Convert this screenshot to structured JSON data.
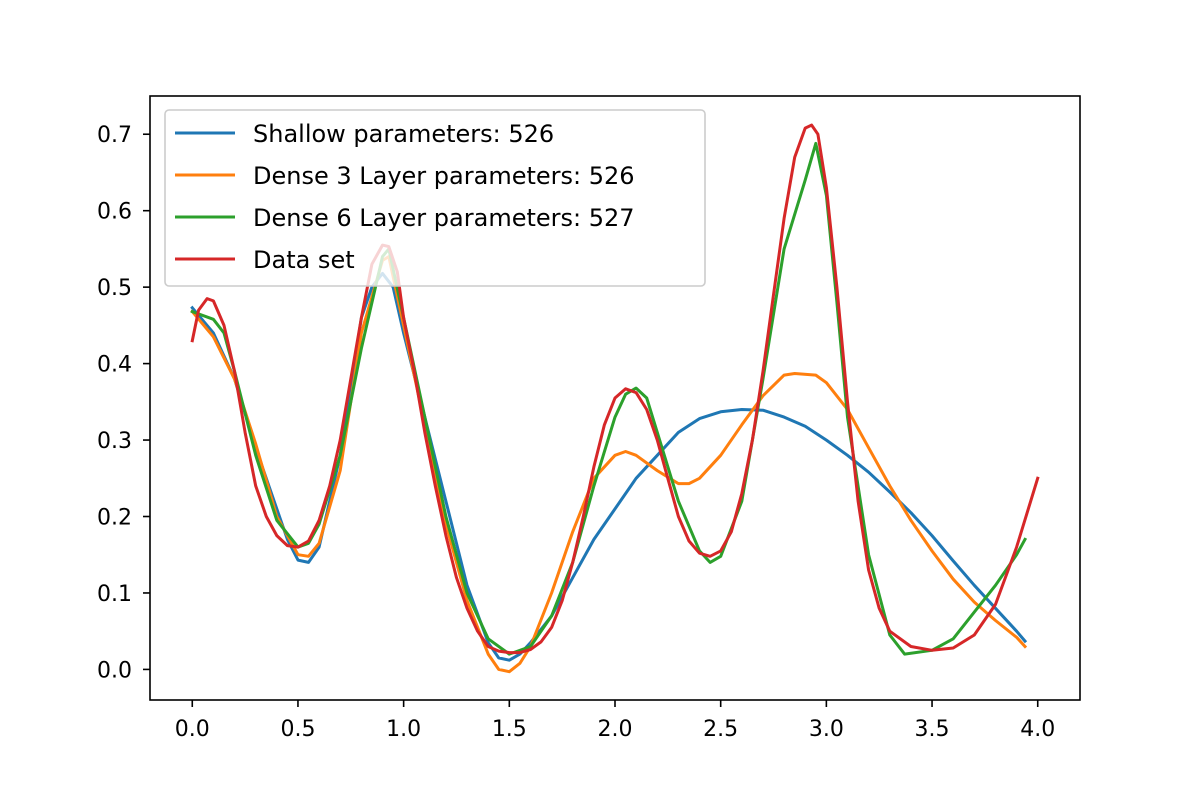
{
  "chart_data": {
    "type": "line",
    "title": "",
    "xlabel": "",
    "ylabel": "",
    "xlim": [
      -0.2,
      4.2
    ],
    "ylim": [
      -0.04,
      0.75
    ],
    "grid": false,
    "legend_position": "top-left",
    "x_ticks": [
      "0.0",
      "0.5",
      "1.0",
      "1.5",
      "2.0",
      "2.5",
      "3.0",
      "3.5",
      "4.0"
    ],
    "y_ticks": [
      "0.0",
      "0.1",
      "0.2",
      "0.3",
      "0.4",
      "0.5",
      "0.6",
      "0.7"
    ],
    "series": [
      {
        "name": "Shallow parameters: 526",
        "color": "#1f77b4",
        "points": [
          [
            0.0,
            0.473
          ],
          [
            0.1,
            0.44
          ],
          [
            0.2,
            0.38
          ],
          [
            0.3,
            0.29
          ],
          [
            0.4,
            0.21
          ],
          [
            0.45,
            0.17
          ],
          [
            0.5,
            0.143
          ],
          [
            0.55,
            0.14
          ],
          [
            0.6,
            0.16
          ],
          [
            0.7,
            0.28
          ],
          [
            0.8,
            0.46
          ],
          [
            0.85,
            0.5
          ],
          [
            0.9,
            0.518
          ],
          [
            0.95,
            0.5
          ],
          [
            1.0,
            0.44
          ],
          [
            1.1,
            0.33
          ],
          [
            1.2,
            0.22
          ],
          [
            1.3,
            0.11
          ],
          [
            1.4,
            0.035
          ],
          [
            1.45,
            0.015
          ],
          [
            1.5,
            0.012
          ],
          [
            1.55,
            0.02
          ],
          [
            1.6,
            0.035
          ],
          [
            1.7,
            0.07
          ],
          [
            1.8,
            0.12
          ],
          [
            1.9,
            0.17
          ],
          [
            2.0,
            0.21
          ],
          [
            2.1,
            0.25
          ],
          [
            2.2,
            0.28
          ],
          [
            2.3,
            0.31
          ],
          [
            2.4,
            0.328
          ],
          [
            2.5,
            0.337
          ],
          [
            2.6,
            0.34
          ],
          [
            2.7,
            0.339
          ],
          [
            2.8,
            0.33
          ],
          [
            2.9,
            0.318
          ],
          [
            3.0,
            0.3
          ],
          [
            3.1,
            0.28
          ],
          [
            3.2,
            0.258
          ],
          [
            3.3,
            0.232
          ],
          [
            3.4,
            0.205
          ],
          [
            3.5,
            0.175
          ],
          [
            3.6,
            0.142
          ],
          [
            3.7,
            0.11
          ],
          [
            3.8,
            0.08
          ],
          [
            3.9,
            0.05
          ],
          [
            3.94,
            0.037
          ]
        ]
      },
      {
        "name": "Dense 3 Layer parameters: 526",
        "color": "#ff7f0e",
        "points": [
          [
            0.0,
            0.468
          ],
          [
            0.1,
            0.435
          ],
          [
            0.2,
            0.38
          ],
          [
            0.3,
            0.295
          ],
          [
            0.4,
            0.2
          ],
          [
            0.5,
            0.15
          ],
          [
            0.55,
            0.148
          ],
          [
            0.6,
            0.165
          ],
          [
            0.7,
            0.26
          ],
          [
            0.8,
            0.44
          ],
          [
            0.9,
            0.535
          ],
          [
            0.93,
            0.54
          ],
          [
            1.0,
            0.45
          ],
          [
            1.1,
            0.32
          ],
          [
            1.2,
            0.19
          ],
          [
            1.3,
            0.09
          ],
          [
            1.4,
            0.02
          ],
          [
            1.45,
            0.0
          ],
          [
            1.5,
            -0.003
          ],
          [
            1.55,
            0.008
          ],
          [
            1.6,
            0.03
          ],
          [
            1.7,
            0.1
          ],
          [
            1.8,
            0.18
          ],
          [
            1.9,
            0.25
          ],
          [
            2.0,
            0.28
          ],
          [
            2.05,
            0.285
          ],
          [
            2.1,
            0.28
          ],
          [
            2.2,
            0.26
          ],
          [
            2.3,
            0.243
          ],
          [
            2.35,
            0.243
          ],
          [
            2.4,
            0.25
          ],
          [
            2.5,
            0.28
          ],
          [
            2.6,
            0.32
          ],
          [
            2.7,
            0.358
          ],
          [
            2.8,
            0.385
          ],
          [
            2.85,
            0.387
          ],
          [
            2.95,
            0.385
          ],
          [
            3.0,
            0.375
          ],
          [
            3.1,
            0.34
          ],
          [
            3.2,
            0.29
          ],
          [
            3.3,
            0.24
          ],
          [
            3.4,
            0.195
          ],
          [
            3.5,
            0.155
          ],
          [
            3.6,
            0.118
          ],
          [
            3.7,
            0.088
          ],
          [
            3.8,
            0.064
          ],
          [
            3.9,
            0.042
          ],
          [
            3.94,
            0.03
          ]
        ]
      },
      {
        "name": "Dense 6 Layer parameters: 527",
        "color": "#2ca02c",
        "points": [
          [
            0.0,
            0.468
          ],
          [
            0.1,
            0.458
          ],
          [
            0.15,
            0.44
          ],
          [
            0.2,
            0.39
          ],
          [
            0.3,
            0.28
          ],
          [
            0.4,
            0.195
          ],
          [
            0.5,
            0.16
          ],
          [
            0.55,
            0.165
          ],
          [
            0.6,
            0.19
          ],
          [
            0.7,
            0.28
          ],
          [
            0.8,
            0.42
          ],
          [
            0.9,
            0.54
          ],
          [
            0.93,
            0.55
          ],
          [
            1.0,
            0.46
          ],
          [
            1.1,
            0.33
          ],
          [
            1.2,
            0.2
          ],
          [
            1.3,
            0.1
          ],
          [
            1.4,
            0.04
          ],
          [
            1.5,
            0.02
          ],
          [
            1.6,
            0.03
          ],
          [
            1.7,
            0.07
          ],
          [
            1.8,
            0.14
          ],
          [
            1.9,
            0.24
          ],
          [
            2.0,
            0.33
          ],
          [
            2.05,
            0.36
          ],
          [
            2.1,
            0.368
          ],
          [
            2.15,
            0.355
          ],
          [
            2.2,
            0.31
          ],
          [
            2.3,
            0.22
          ],
          [
            2.4,
            0.155
          ],
          [
            2.45,
            0.14
          ],
          [
            2.5,
            0.148
          ],
          [
            2.6,
            0.22
          ],
          [
            2.7,
            0.38
          ],
          [
            2.8,
            0.55
          ],
          [
            2.9,
            0.64
          ],
          [
            2.95,
            0.688
          ],
          [
            3.0,
            0.62
          ],
          [
            3.05,
            0.48
          ],
          [
            3.1,
            0.33
          ],
          [
            3.2,
            0.15
          ],
          [
            3.3,
            0.045
          ],
          [
            3.37,
            0.02
          ],
          [
            3.5,
            0.025
          ],
          [
            3.6,
            0.04
          ],
          [
            3.7,
            0.075
          ],
          [
            3.8,
            0.11
          ],
          [
            3.9,
            0.15
          ],
          [
            3.94,
            0.17
          ]
        ]
      },
      {
        "name": "Data set",
        "color": "#d62728",
        "points": [
          [
            0.0,
            0.43
          ],
          [
            0.03,
            0.47
          ],
          [
            0.07,
            0.485
          ],
          [
            0.1,
            0.482
          ],
          [
            0.15,
            0.45
          ],
          [
            0.2,
            0.39
          ],
          [
            0.25,
            0.31
          ],
          [
            0.3,
            0.24
          ],
          [
            0.35,
            0.2
          ],
          [
            0.4,
            0.175
          ],
          [
            0.45,
            0.162
          ],
          [
            0.5,
            0.16
          ],
          [
            0.55,
            0.168
          ],
          [
            0.6,
            0.195
          ],
          [
            0.65,
            0.24
          ],
          [
            0.7,
            0.3
          ],
          [
            0.75,
            0.38
          ],
          [
            0.8,
            0.46
          ],
          [
            0.85,
            0.53
          ],
          [
            0.9,
            0.555
          ],
          [
            0.93,
            0.553
          ],
          [
            0.97,
            0.52
          ],
          [
            1.0,
            0.46
          ],
          [
            1.05,
            0.39
          ],
          [
            1.1,
            0.31
          ],
          [
            1.15,
            0.24
          ],
          [
            1.2,
            0.175
          ],
          [
            1.25,
            0.12
          ],
          [
            1.3,
            0.08
          ],
          [
            1.35,
            0.05
          ],
          [
            1.4,
            0.03
          ],
          [
            1.45,
            0.024
          ],
          [
            1.5,
            0.022
          ],
          [
            1.55,
            0.022
          ],
          [
            1.6,
            0.026
          ],
          [
            1.65,
            0.036
          ],
          [
            1.7,
            0.055
          ],
          [
            1.75,
            0.09
          ],
          [
            1.8,
            0.14
          ],
          [
            1.85,
            0.2
          ],
          [
            1.9,
            0.265
          ],
          [
            1.95,
            0.32
          ],
          [
            2.0,
            0.355
          ],
          [
            2.05,
            0.367
          ],
          [
            2.1,
            0.362
          ],
          [
            2.15,
            0.34
          ],
          [
            2.2,
            0.3
          ],
          [
            2.25,
            0.25
          ],
          [
            2.3,
            0.2
          ],
          [
            2.35,
            0.168
          ],
          [
            2.4,
            0.152
          ],
          [
            2.45,
            0.148
          ],
          [
            2.5,
            0.155
          ],
          [
            2.55,
            0.18
          ],
          [
            2.6,
            0.23
          ],
          [
            2.65,
            0.3
          ],
          [
            2.7,
            0.39
          ],
          [
            2.75,
            0.49
          ],
          [
            2.8,
            0.59
          ],
          [
            2.85,
            0.67
          ],
          [
            2.9,
            0.708
          ],
          [
            2.93,
            0.712
          ],
          [
            2.96,
            0.7
          ],
          [
            3.0,
            0.63
          ],
          [
            3.05,
            0.5
          ],
          [
            3.1,
            0.35
          ],
          [
            3.15,
            0.22
          ],
          [
            3.2,
            0.13
          ],
          [
            3.25,
            0.08
          ],
          [
            3.3,
            0.05
          ],
          [
            3.4,
            0.03
          ],
          [
            3.5,
            0.025
          ],
          [
            3.6,
            0.028
          ],
          [
            3.7,
            0.045
          ],
          [
            3.8,
            0.085
          ],
          [
            3.9,
            0.16
          ],
          [
            4.0,
            0.25
          ]
        ]
      }
    ]
  }
}
